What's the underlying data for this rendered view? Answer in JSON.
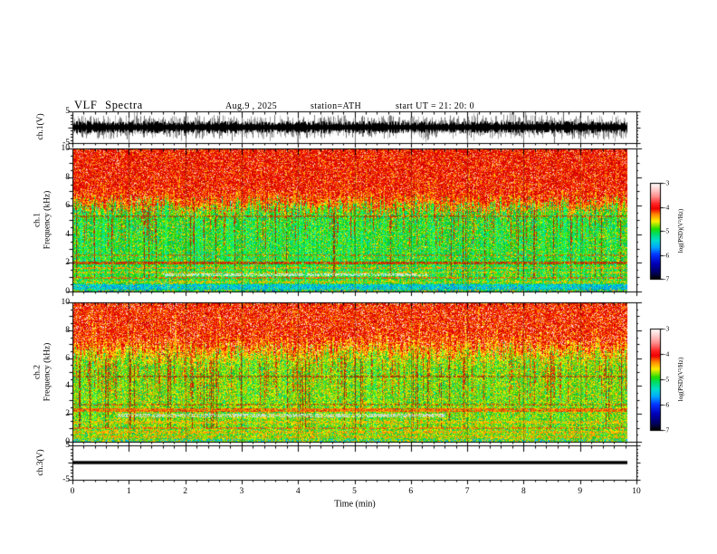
{
  "header": {
    "title": "VLF Spectra",
    "date": "Aug.9 , 2025",
    "station": "station=ATH",
    "start_ut": "start UT =  21: 20: 0"
  },
  "axes": {
    "time_label": "Time (min)",
    "time_ticks": [
      "0",
      "1",
      "2",
      "3",
      "4",
      "5",
      "6",
      "7",
      "8",
      "9",
      "10"
    ],
    "freq_ticks": [
      "10",
      "8",
      "6",
      "4",
      "2",
      "0"
    ],
    "volt_ticks": [
      "5",
      "-5"
    ],
    "panels": [
      {
        "id": "ch1-waveform",
        "ylabel": "ch.1(V)",
        "ymin": -5,
        "ymax": 5,
        "unit": "V"
      },
      {
        "id": "ch1-spectrogram",
        "ylabel_line1": "ch.1",
        "ylabel_line2": "Frequency (kHz)",
        "ymin": 0,
        "ymax": 10,
        "unit": "kHz"
      },
      {
        "id": "ch2-spectrogram",
        "ylabel_line1": "ch.2",
        "ylabel_line2": "Frequency (kHz)",
        "ymin": 0,
        "ymax": 10,
        "unit": "kHz"
      },
      {
        "id": "ch3-waveform",
        "ylabel": "ch.3(V)",
        "ymin": -5,
        "ymax": 5,
        "unit": "V"
      }
    ]
  },
  "colorbar": {
    "label": "log(PSD)(V²/Hz)",
    "ticks": [
      "-3",
      "-4",
      "-5",
      "-6",
      "-7"
    ],
    "gradient": [
      [
        0,
        "#ffffff"
      ],
      [
        0.06,
        "#ffd6d6"
      ],
      [
        0.14,
        "#ff8f8f"
      ],
      [
        0.22,
        "#ff2222"
      ],
      [
        0.27,
        "#ee0000"
      ],
      [
        0.33,
        "#ff8800"
      ],
      [
        0.4,
        "#ffee00"
      ],
      [
        0.48,
        "#22dd00"
      ],
      [
        0.53,
        "#00dd66"
      ],
      [
        0.6,
        "#00ddcc"
      ],
      [
        0.67,
        "#00aaff"
      ],
      [
        0.75,
        "#0033ff"
      ],
      [
        0.84,
        "#0000bb"
      ],
      [
        0.93,
        "#000066"
      ],
      [
        1,
        "#000000"
      ]
    ]
  },
  "chart_data": {
    "type": "heatmap",
    "title": "VLF Spectra",
    "date": "Aug.9 , 2025",
    "station": "ATH",
    "start_ut": "21: 20: 0",
    "x": {
      "label": "Time (min)",
      "range": [
        0,
        10
      ],
      "major_tick": 1,
      "minor_tick": 0.2,
      "data_end": 9.84
    },
    "psd_scale": {
      "label": "log(PSD)(V²/Hz)",
      "range": [
        -7,
        -3
      ]
    },
    "grid": {
      "minute_lines": true
    },
    "panels": [
      {
        "name": "ch.1 voltage waveform",
        "ylim": [
          -5,
          5
        ],
        "description": "dense broadband black noise trace, typical ±3 V, spikes near ±5 V, data ends at 9.84 min",
        "wave": {
          "typ_v": 3,
          "core_v": 1.3,
          "max_v": 5
        }
      },
      {
        "name": "ch.1 spectrogram",
        "ylim": [
          0,
          10
        ],
        "description": "red saturated band above ~5.5 kHz, green noisy band 1-5.5 kHz with vertical streaks, horizontal emission lines and cyan band below 0.6 kHz",
        "streaks": {
          "cutBase": 5.5,
          "cutVar": 1.3,
          "deepP": 0.14,
          "deep0": 3.0,
          "deepVar": 2.0,
          "darkP": 0.05,
          "brightP": 0.35,
          "yellowUpP": 0.12,
          "whiteP": 0.008
        },
        "palette": {
          "red": [
            "#ee1100",
            "#ee1100",
            "#ee1100",
            "#ff2a00",
            "#d40000",
            "#d40000",
            "#ff6a00",
            "#ff9900",
            "#ffb9a0",
            "#b80000"
          ],
          "trans": [
            "#ff8800",
            "#ffcc00",
            "#ffee00",
            "#ff5500",
            "#ffaa00",
            "#ee2200"
          ],
          "green": [
            "#00d42a",
            "#00d42a",
            "#11cc11",
            "#2ad400",
            "#00c655",
            "#66dd00",
            "#99e000",
            "#00cc88",
            "#ffee00",
            "#ff9900",
            "#00bbbb"
          ],
          "greenBright": [
            "#00ee55",
            "#00e87a",
            "#22ee22",
            "#00ddaa",
            "#aaff00",
            "#00eecc",
            "#44ee00"
          ],
          "redStreak": [
            "#dd2200",
            "#ee4400",
            "#cc2200"
          ],
          "dark": [
            "#aa2200",
            "#993300"
          ]
        },
        "features": [
          {
            "f0": 5.2,
            "f1": 5.35,
            "p": 0.5,
            "colors": [
              "#b05000",
              "#8a4400"
            ]
          },
          {
            "f0": 2.5,
            "f1": 2.62,
            "p": 0.4,
            "colors": [
              "#bb5500",
              "#cc7700"
            ]
          },
          {
            "f0": 1.9,
            "f1": 2.1,
            "p": 0.8,
            "colors": [
              "#cc2200",
              "#ee5500",
              "#993300"
            ]
          },
          {
            "f0": 1.6,
            "f1": 1.72,
            "p": 0.55,
            "colors": [
              "#ff7700",
              "#ffaa00"
            ]
          },
          {
            "f0": 1.32,
            "f1": 1.45,
            "p": 0.5,
            "colors": [
              "#ff8800",
              "#d8e000"
            ]
          },
          {
            "f0": 1.1,
            "f1": 1.28,
            "p": 0.6,
            "x0": 1.6,
            "x1": 6.3,
            "colors": [
              "#cde8cc",
              "#e2f2dc",
              "#bfe0c8"
            ]
          },
          {
            "f0": 0.92,
            "f1": 1.06,
            "p": 0.55,
            "colors": [
              "#ff6600",
              "#ee4400"
            ]
          },
          {
            "f0": 0.6,
            "f1": 0.78,
            "p": 0.45,
            "colors": [
              "#ffcc00",
              "#ff8800",
              "#aadd00"
            ]
          },
          {
            "f0": 0.15,
            "f1": 0.55,
            "p": 0.85,
            "colors": [
              "#00d8d8",
              "#00c2ff",
              "#17dcaa",
              "#0077ee",
              "#00e8c8",
              "#009ddd"
            ]
          },
          {
            "f0": 0.0,
            "f1": 0.15,
            "p": 0.6,
            "colors": [
              "#22cc44",
              "#ffaa00",
              "#0044cc",
              "#00bb99"
            ]
          }
        ]
      },
      {
        "name": "ch.2 spectrogram",
        "ylim": [
          0,
          10
        ],
        "description": "like ch.1 but yellower mid-band, deeper red streaks, strong orange line near 2.3 kHz and pale smear near 1.9 kHz",
        "streaks": {
          "cutBase": 5.8,
          "cutVar": 1.4,
          "deepP": 0.22,
          "deep0": 2.6,
          "deepVar": 2.4,
          "darkP": 0.06,
          "brightP": 0.3,
          "yellowUpP": 0.2,
          "whiteP": 0.025
        },
        "palette": {
          "red": [
            "#ee1100",
            "#ee1100",
            "#f22000",
            "#d40000",
            "#ff6a00",
            "#ff9900",
            "#ffccc8",
            "#c00000",
            "#ff8800",
            "#ee1100"
          ],
          "trans": [
            "#ffcc00",
            "#ffee00",
            "#ff9900",
            "#ffff44",
            "#ff6600"
          ],
          "green": [
            "#55cc00",
            "#88dd00",
            "#aadd00",
            "#00cc33",
            "#ffee00",
            "#ffcc00",
            "#33cc22",
            "#00bb77",
            "#ff8800"
          ],
          "greenBright": [
            "#66ee00",
            "#aaee00",
            "#22dd44",
            "#00ddaa",
            "#ddff00"
          ],
          "redStreak": [
            "#dd2200",
            "#ee4400",
            "#cc2200"
          ],
          "dark": [
            "#aa2200",
            "#993300"
          ]
        },
        "features": [
          {
            "f0": 4.62,
            "f1": 4.75,
            "p": 0.5,
            "colors": [
              "#993300",
              "#b04400"
            ]
          },
          {
            "f0": 2.62,
            "f1": 2.75,
            "p": 0.45,
            "colors": [
              "#aa3300",
              "#cc5500"
            ]
          },
          {
            "f0": 2.15,
            "f1": 2.42,
            "p": 0.85,
            "colors": [
              "#ff7700",
              "#ff9900",
              "#ee5500",
              "#cc3300"
            ]
          },
          {
            "f0": 1.78,
            "f1": 2.02,
            "p": 0.55,
            "x0": 0.8,
            "x1": 6.6,
            "colors": [
              "#ccdcc8",
              "#d8e8d0",
              "#c2d4cc"
            ]
          },
          {
            "f0": 1.36,
            "f1": 1.5,
            "p": 0.5,
            "colors": [
              "#ffcc00",
              "#ff9900"
            ]
          },
          {
            "f0": 0.96,
            "f1": 1.1,
            "p": 0.5,
            "colors": [
              "#ff6600",
              "#ee4400"
            ]
          },
          {
            "f0": 0.62,
            "f1": 0.8,
            "p": 0.5,
            "colors": [
              "#ff8800",
              "#ffbb00"
            ]
          },
          {
            "f0": 0.3,
            "f1": 0.5,
            "p": 0.45,
            "colors": [
              "#ffaa00",
              "#88cc00",
              "#ff7700"
            ]
          },
          {
            "f0": 0.0,
            "f1": 0.22,
            "p": 0.6,
            "colors": [
              "#00d4c4",
              "#55cc00",
              "#00a8ff",
              "#ffcc00"
            ]
          }
        ]
      },
      {
        "name": "ch.3 voltage waveform",
        "ylim": [
          -5,
          5
        ],
        "description": "flat thick black line at 0 V across 0 - 9.84 min (no signal)",
        "wave": {
          "flat_v": 0,
          "thickness_v": 0.9
        }
      }
    ]
  }
}
